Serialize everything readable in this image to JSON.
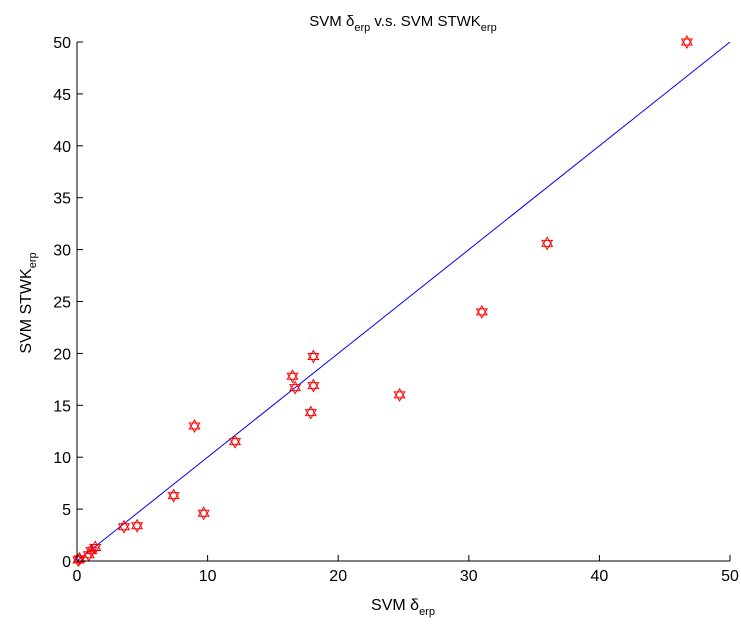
{
  "chart_data": {
    "type": "scatter",
    "title": {
      "prefix": "SVM δ",
      "prefix_sub": "erp",
      "middle": " v.s. SVM STWK",
      "suffix_sub": "erp"
    },
    "xlabel": {
      "main": "SVM δ",
      "sub": "erp"
    },
    "ylabel": {
      "main": "SVM STWK",
      "sub": "erp"
    },
    "xlim": [
      0,
      50
    ],
    "ylim": [
      0,
      50
    ],
    "xticks": [
      0,
      10,
      20,
      30,
      40,
      50
    ],
    "yticks": [
      0,
      5,
      10,
      15,
      20,
      25,
      30,
      35,
      40,
      45,
      50
    ],
    "grid": false,
    "legend": "none",
    "marker": "hexagram",
    "colors": {
      "points": "#ff0000",
      "line": "#0000ff",
      "axes": "#000000"
    },
    "reference_line": {
      "from": [
        0,
        0
      ],
      "to": [
        50,
        50
      ]
    },
    "points": [
      {
        "x": 0.1,
        "y": 0.1
      },
      {
        "x": 0.2,
        "y": 0.2
      },
      {
        "x": 0.9,
        "y": 0.6
      },
      {
        "x": 1.1,
        "y": 1.0
      },
      {
        "x": 1.4,
        "y": 1.3
      },
      {
        "x": 3.6,
        "y": 3.3
      },
      {
        "x": 4.6,
        "y": 3.4
      },
      {
        "x": 7.4,
        "y": 6.3
      },
      {
        "x": 9.0,
        "y": 13.0
      },
      {
        "x": 9.7,
        "y": 4.6
      },
      {
        "x": 12.1,
        "y": 11.5
      },
      {
        "x": 16.5,
        "y": 17.8
      },
      {
        "x": 16.7,
        "y": 16.7
      },
      {
        "x": 17.9,
        "y": 14.3
      },
      {
        "x": 18.1,
        "y": 19.7
      },
      {
        "x": 18.1,
        "y": 16.9
      },
      {
        "x": 24.7,
        "y": 16.0
      },
      {
        "x": 31.0,
        "y": 24.0
      },
      {
        "x": 36.0,
        "y": 30.6
      },
      {
        "x": 46.7,
        "y": 50.0
      }
    ]
  }
}
